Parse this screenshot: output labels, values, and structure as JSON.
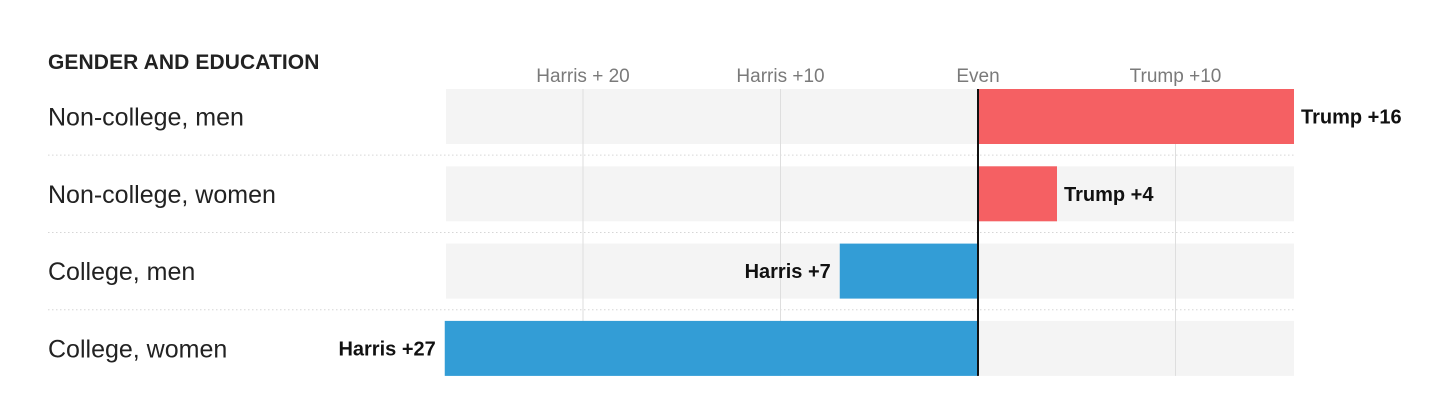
{
  "chart_data": {
    "type": "bar",
    "orientation": "horizontal-diverging",
    "title": "GENDER AND EDUCATION",
    "x_ticks": [
      {
        "value": -20,
        "label": "Harris + 20"
      },
      {
        "value": -10,
        "label": "Harris +10"
      },
      {
        "value": 0,
        "label": "Even"
      },
      {
        "value": 10,
        "label": "Trump +10"
      }
    ],
    "xlim": [
      -27,
      16
    ],
    "categories": [
      "Non-college, men",
      "Non-college, women",
      "College, men",
      "College, women"
    ],
    "values": [
      16,
      4,
      -7,
      -27
    ],
    "value_labels": [
      "Trump +16",
      "Trump +4",
      "Harris +7",
      "Harris +27"
    ],
    "grid": true,
    "colors": {
      "trump": "#f56063",
      "harris": "#339dd6",
      "track": "#f4f4f4",
      "grid": "#dedede",
      "zero_line": "#111111",
      "separator": "#d6d6d6"
    }
  }
}
